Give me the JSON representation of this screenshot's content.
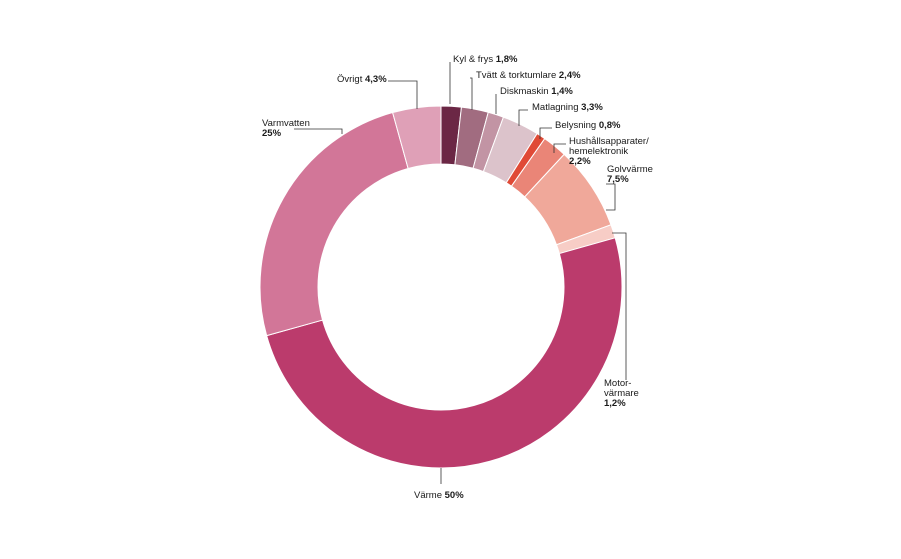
{
  "chart_data": {
    "type": "pie",
    "donut": true,
    "unit": "%",
    "slices": [
      {
        "label": "Kyl & frys",
        "value": 1.8,
        "value_label": "1,8%",
        "color": "#6b2745"
      },
      {
        "label": "Tvätt & torktumlare",
        "value": 2.4,
        "value_label": "2,4%",
        "color": "#a16c80"
      },
      {
        "label": "Diskmaskin",
        "value": 1.4,
        "value_label": "1,4%",
        "color": "#c294a4"
      },
      {
        "label": "Matlagning",
        "value": 3.3,
        "value_label": "3,3%",
        "color": "#dcc3cb"
      },
      {
        "label": "Belysning",
        "value": 0.8,
        "value_label": "0,8%",
        "color": "#e04a36"
      },
      {
        "label": "Hushållsapparater/ hemelektronik",
        "label_lines": [
          "Hushållsapparater/",
          "hemelektronik"
        ],
        "value": 2.2,
        "value_label": "2,2%",
        "color": "#ea8577"
      },
      {
        "label": "Golvvärme",
        "value": 7.5,
        "value_label": "7,5%",
        "color": "#f0a89a"
      },
      {
        "label": "Motor-värmare",
        "label_lines": [
          "Motor-",
          "värmare"
        ],
        "value": 1.2,
        "value_label": "1,2%",
        "color": "#f7cdc6"
      },
      {
        "label": "Värme",
        "value": 50,
        "value_label": "50%",
        "color": "#bb3b6c"
      },
      {
        "label": "Varmvatten",
        "value": 25,
        "value_label": "25%",
        "color": "#d27698"
      },
      {
        "label": "Övrigt",
        "value": 4.3,
        "value_label": "4,3%",
        "color": "#dfa0b7"
      }
    ]
  }
}
